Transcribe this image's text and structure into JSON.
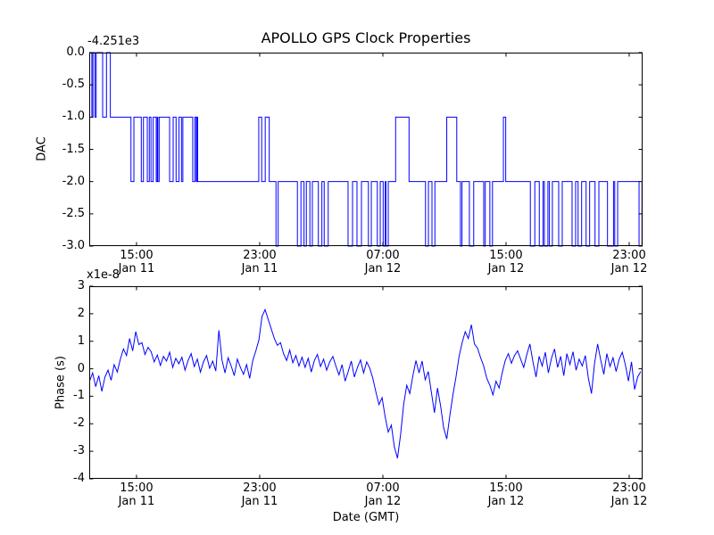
{
  "figure": {
    "background_color": "#ffffff",
    "line_color": "#0000ff",
    "axis_color": "#000000"
  },
  "chart_data": [
    {
      "id": "dac",
      "type": "line",
      "line_style": "steps-post",
      "title": "APOLLO GPS Clock Properties",
      "ylabel": "DAC",
      "y_offset_text": "-4.251e3",
      "x_unit": "hours since Jan 11 00:00 GMT",
      "xlim": [
        11.93,
        47.87
      ],
      "ylim": [
        -3.0,
        0.0
      ],
      "yticks": [
        0.0,
        -0.5,
        -1.0,
        -1.5,
        -2.0,
        -2.5,
        -3.0
      ],
      "ytick_labels": [
        "0.0",
        "-0.5",
        "-1.0",
        "-1.5",
        "-2.0",
        "-2.5",
        "-3.0"
      ],
      "xticks": [
        15,
        23,
        31,
        39,
        47
      ],
      "xtick_labels_line1": [
        "15:00",
        "23:00",
        "07:00",
        "15:00",
        "23:00"
      ],
      "xtick_labels_line2": [
        "Jan 11",
        "Jan 11",
        "Jan 12",
        "Jan 12",
        "Jan 12"
      ],
      "grid": false,
      "legend": null,
      "steps": [
        [
          11.93,
          0
        ],
        [
          12.1,
          -1
        ],
        [
          12.17,
          0
        ],
        [
          12.3,
          -1
        ],
        [
          12.38,
          0
        ],
        [
          12.8,
          -1
        ],
        [
          13.05,
          0
        ],
        [
          13.3,
          -1
        ],
        [
          14.64,
          -2
        ],
        [
          14.83,
          -1
        ],
        [
          15.31,
          -2
        ],
        [
          15.45,
          -1
        ],
        [
          15.7,
          -2
        ],
        [
          15.83,
          -1
        ],
        [
          15.94,
          -2
        ],
        [
          16.08,
          -1
        ],
        [
          16.28,
          -2
        ],
        [
          16.35,
          -1
        ],
        [
          16.38,
          -2
        ],
        [
          16.47,
          -1
        ],
        [
          17.15,
          -2
        ],
        [
          17.38,
          -1
        ],
        [
          17.57,
          -2
        ],
        [
          17.76,
          -1
        ],
        [
          17.92,
          -2
        ],
        [
          18.01,
          -1
        ],
        [
          18.65,
          -2
        ],
        [
          18.79,
          -1
        ],
        [
          18.88,
          -2
        ],
        [
          18.94,
          -1
        ],
        [
          18.97,
          -2
        ],
        [
          22.94,
          -1
        ],
        [
          23.13,
          -2
        ],
        [
          23.36,
          -1
        ],
        [
          23.62,
          -2
        ],
        [
          24.06,
          -3
        ],
        [
          24.2,
          -2
        ],
        [
          25.45,
          -3
        ],
        [
          25.68,
          -2
        ],
        [
          25.88,
          -3
        ],
        [
          26.03,
          -2
        ],
        [
          26.26,
          -3
        ],
        [
          26.42,
          -2
        ],
        [
          26.81,
          -3
        ],
        [
          27.04,
          -2
        ],
        [
          27.19,
          -3
        ],
        [
          27.45,
          -2
        ],
        [
          28.74,
          -3
        ],
        [
          29.03,
          -2
        ],
        [
          29.32,
          -3
        ],
        [
          29.61,
          -2
        ],
        [
          30.06,
          -3
        ],
        [
          30.25,
          -2
        ],
        [
          30.64,
          -3
        ],
        [
          30.83,
          -2
        ],
        [
          31.02,
          -3
        ],
        [
          31.15,
          -2
        ],
        [
          31.2,
          -3
        ],
        [
          31.35,
          -2
        ],
        [
          31.83,
          -1
        ],
        [
          32.7,
          -2
        ],
        [
          33.77,
          -3
        ],
        [
          33.96,
          -2
        ],
        [
          34.19,
          -3
        ],
        [
          34.38,
          -2
        ],
        [
          35.15,
          -1
        ],
        [
          35.8,
          -2
        ],
        [
          36.04,
          -3
        ],
        [
          36.14,
          -2
        ],
        [
          36.62,
          -3
        ],
        [
          36.9,
          -2
        ],
        [
          37.55,
          -3
        ],
        [
          37.65,
          -2
        ],
        [
          37.95,
          -3
        ],
        [
          38.12,
          -2
        ],
        [
          38.83,
          -1
        ],
        [
          38.98,
          -2
        ],
        [
          40.58,
          -3
        ],
        [
          40.87,
          -2
        ],
        [
          41.16,
          -3
        ],
        [
          41.4,
          -2
        ],
        [
          41.49,
          -3
        ],
        [
          41.72,
          -2
        ],
        [
          41.82,
          -3
        ],
        [
          42.01,
          -2
        ],
        [
          42.42,
          -3
        ],
        [
          42.65,
          -2
        ],
        [
          43.29,
          -3
        ],
        [
          43.52,
          -2
        ],
        [
          43.68,
          -3
        ],
        [
          43.91,
          -2
        ],
        [
          44.2,
          -3
        ],
        [
          44.43,
          -2
        ],
        [
          44.78,
          -3
        ],
        [
          45.03,
          -2
        ],
        [
          45.59,
          -3
        ],
        [
          45.98,
          -2
        ],
        [
          46.06,
          -3
        ],
        [
          46.25,
          -2
        ],
        [
          47.64,
          -3
        ],
        [
          47.83,
          -2
        ]
      ]
    },
    {
      "id": "phase",
      "type": "line",
      "ylabel": "Phase (s)",
      "xlabel": "Date (GMT)",
      "y_offset_text": "x1e-8",
      "x_unit": "hours since Jan 11 00:00 GMT",
      "xlim": [
        11.93,
        47.87
      ],
      "ylim": [
        -4,
        3
      ],
      "yticks": [
        3,
        2,
        1,
        0,
        -1,
        -2,
        -3,
        -4
      ],
      "ytick_labels": [
        "3",
        "2",
        "1",
        "0",
        "-1",
        "-2",
        "-3",
        "-4"
      ],
      "xticks": [
        15,
        23,
        31,
        39,
        47
      ],
      "xtick_labels_line1": [
        "15:00",
        "23:00",
        "07:00",
        "15:00",
        "23:00"
      ],
      "xtick_labels_line2": [
        "Jan 11",
        "Jan 11",
        "Jan 12",
        "Jan 12",
        "Jan 12"
      ],
      "grid": false,
      "legend": null,
      "t0": 11.95,
      "dt": 0.2,
      "values": [
        -0.45,
        -0.15,
        -0.65,
        -0.25,
        -0.82,
        -0.3,
        -0.05,
        -0.42,
        0.15,
        -0.12,
        0.35,
        0.72,
        0.48,
        1.1,
        0.65,
        1.35,
        0.88,
        0.95,
        0.52,
        0.78,
        0.62,
        0.25,
        0.5,
        0.12,
        0.45,
        0.28,
        0.6,
        0.05,
        0.38,
        0.18,
        0.42,
        -0.05,
        0.3,
        0.55,
        0.08,
        0.35,
        -0.12,
        0.25,
        0.48,
        0.02,
        0.28,
        -0.08,
        1.4,
        0.32,
        -0.15,
        0.4,
        0.1,
        -0.25,
        0.35,
        0.05,
        -0.2,
        0.15,
        -0.35,
        0.3,
        0.65,
        1.05,
        1.9,
        2.15,
        1.8,
        1.45,
        1.1,
        0.85,
        0.95,
        0.55,
        0.3,
        0.68,
        0.22,
        0.48,
        0.1,
        0.42,
        0.05,
        0.38,
        -0.12,
        0.3,
        0.52,
        0.08,
        0.35,
        -0.05,
        0.25,
        0.45,
        0.1,
        -0.22,
        0.15,
        -0.45,
        -0.1,
        0.28,
        -0.3,
        0.05,
        0.32,
        -0.15,
        0.25,
        0.02,
        -0.35,
        -0.85,
        -1.3,
        -1.05,
        -1.75,
        -2.3,
        -2.05,
        -2.85,
        -3.25,
        -2.4,
        -1.3,
        -0.6,
        -0.9,
        -0.25,
        0.3,
        -0.15,
        0.28,
        -0.4,
        -0.1,
        -0.85,
        -1.6,
        -0.7,
        -1.35,
        -2.15,
        -2.55,
        -1.7,
        -0.95,
        -0.3,
        0.45,
        0.95,
        1.35,
        1.1,
        1.6,
        0.9,
        0.75,
        0.4,
        0.1,
        -0.35,
        -0.6,
        -0.95,
        -0.45,
        -0.7,
        -0.15,
        0.3,
        0.55,
        0.2,
        0.48,
        0.65,
        0.35,
        0.05,
        0.52,
        0.9,
        0.25,
        -0.3,
        0.45,
        0.1,
        0.6,
        -0.15,
        0.38,
        0.72,
        0.05,
        0.45,
        -0.25,
        0.55,
        0.15,
        0.62,
        -0.05,
        0.35,
        0.1,
        0.48,
        -0.35,
        -0.9,
        0.2,
        0.9,
        0.32,
        -0.2,
        0.55,
        0.08,
        0.4,
        -0.1,
        0.35,
        0.6,
        0.15,
        -0.45,
        0.25,
        -0.75,
        -0.3,
        -0.1
      ]
    }
  ]
}
